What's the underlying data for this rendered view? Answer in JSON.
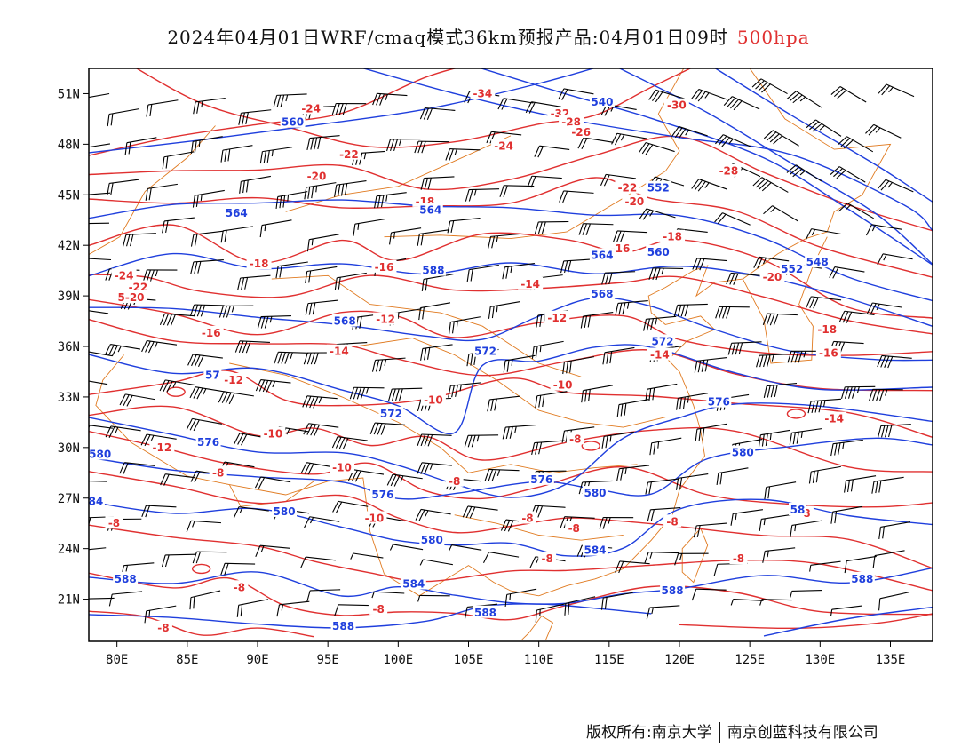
{
  "title": {
    "main": "2024年04月01日WRF/cmaq模式36km预报产品:04月01日09时",
    "level": "500hpa",
    "level_color": "#e03030"
  },
  "axes": {
    "lon_labels": [
      "80E",
      "85E",
      "90E",
      "95E",
      "100E",
      "105E",
      "110E",
      "115E",
      "120E",
      "125E",
      "130E",
      "135E"
    ],
    "lon_values": [
      80,
      85,
      90,
      95,
      100,
      105,
      110,
      115,
      120,
      125,
      130,
      135
    ],
    "lat_labels": [
      "51N",
      "48N",
      "45N",
      "42N",
      "39N",
      "36N",
      "33N",
      "30N",
      "27N",
      "24N",
      "21N"
    ],
    "lat_values": [
      51,
      48,
      45,
      42,
      39,
      36,
      33,
      30,
      27,
      24,
      21
    ],
    "lon_range": [
      78,
      138
    ],
    "lat_range": [
      18.5,
      52.5
    ]
  },
  "colors": {
    "height_contours": "#1f3fdd",
    "temperature_contours": "#e03030",
    "coastline_borders": "#e07a20",
    "wind_barbs": "#000000"
  },
  "height_labels": [
    {
      "text": "560",
      "lon": 92.5,
      "lat": 49.3
    },
    {
      "text": "540",
      "lon": 114.5,
      "lat": 50.5
    },
    {
      "text": "552",
      "lon": 118.5,
      "lat": 45.4
    },
    {
      "text": "564",
      "lon": 88.5,
      "lat": 43.9
    },
    {
      "text": "564",
      "lon": 102.3,
      "lat": 44.1
    },
    {
      "text": "588",
      "lon": 102.5,
      "lat": 40.5
    },
    {
      "text": "564",
      "lon": 114.5,
      "lat": 41.4
    },
    {
      "text": "560",
      "lon": 118.5,
      "lat": 41.6
    },
    {
      "text": "552",
      "lon": 128.0,
      "lat": 40.6
    },
    {
      "text": "548",
      "lon": 129.8,
      "lat": 41.0
    },
    {
      "text": "568",
      "lon": 114.5,
      "lat": 39.1
    },
    {
      "text": "568",
      "lon": 96.2,
      "lat": 37.5
    },
    {
      "text": "572",
      "lon": 106.2,
      "lat": 35.7
    },
    {
      "text": "572",
      "lon": 118.8,
      "lat": 36.3
    },
    {
      "text": "57",
      "lon": 86.8,
      "lat": 34.3
    },
    {
      "text": "572",
      "lon": 99.5,
      "lat": 32.0
    },
    {
      "text": "576",
      "lon": 122.8,
      "lat": 32.7
    },
    {
      "text": "576",
      "lon": 86.5,
      "lat": 30.3
    },
    {
      "text": "580",
      "lon": 78.8,
      "lat": 29.6
    },
    {
      "text": "576",
      "lon": 110.2,
      "lat": 28.1
    },
    {
      "text": "576",
      "lon": 98.9,
      "lat": 27.2
    },
    {
      "text": "580",
      "lon": 124.5,
      "lat": 29.7
    },
    {
      "text": "580",
      "lon": 91.9,
      "lat": 26.2
    },
    {
      "text": "580",
      "lon": 114.0,
      "lat": 27.3
    },
    {
      "text": "84",
      "lon": 78.5,
      "lat": 26.8
    },
    {
      "text": "580",
      "lon": 102.4,
      "lat": 24.5
    },
    {
      "text": "58",
      "lon": 128.4,
      "lat": 26.3
    },
    {
      "text": "584",
      "lon": 114.0,
      "lat": 23.9
    },
    {
      "text": "588",
      "lon": 80.6,
      "lat": 22.2
    },
    {
      "text": "584",
      "lon": 101.1,
      "lat": 21.9
    },
    {
      "text": "588",
      "lon": 119.5,
      "lat": 21.5
    },
    {
      "text": "588",
      "lon": 133.0,
      "lat": 22.2
    },
    {
      "text": "588",
      "lon": 106.2,
      "lat": 20.2
    },
    {
      "text": "588",
      "lon": 96.1,
      "lat": 19.4
    }
  ],
  "temp_labels": [
    {
      "text": "-34",
      "lon": 106.0,
      "lat": 51.0
    },
    {
      "text": "-32",
      "lon": 111.5,
      "lat": 49.8
    },
    {
      "text": "-28",
      "lon": 112.3,
      "lat": 49.3
    },
    {
      "text": "-26",
      "lon": 113.0,
      "lat": 48.7
    },
    {
      "text": "-30",
      "lon": 119.8,
      "lat": 50.3
    },
    {
      "text": "-24",
      "lon": 93.8,
      "lat": 50.1
    },
    {
      "text": "-24",
      "lon": 107.5,
      "lat": 47.9
    },
    {
      "text": "-22",
      "lon": 96.5,
      "lat": 47.4
    },
    {
      "text": "-28",
      "lon": 123.5,
      "lat": 46.4
    },
    {
      "text": "-20",
      "lon": 94.2,
      "lat": 46.1
    },
    {
      "text": "-22",
      "lon": 116.3,
      "lat": 45.4
    },
    {
      "text": "-20",
      "lon": 116.8,
      "lat": 44.6
    },
    {
      "text": "-18",
      "lon": 101.9,
      "lat": 44.6
    },
    {
      "text": "-18",
      "lon": 119.5,
      "lat": 42.5
    },
    {
      "text": "-16",
      "lon": 115.8,
      "lat": 41.8
    },
    {
      "text": "-18",
      "lon": 90.1,
      "lat": 40.9
    },
    {
      "text": "-16",
      "lon": 99.0,
      "lat": 40.7
    },
    {
      "text": "-20",
      "lon": 126.6,
      "lat": 40.1
    },
    {
      "text": "-24",
      "lon": 80.5,
      "lat": 40.2
    },
    {
      "text": "-22",
      "lon": 81.5,
      "lat": 39.5
    },
    {
      "text": "5-20",
      "lon": 81.0,
      "lat": 38.9
    },
    {
      "text": "-14",
      "lon": 109.4,
      "lat": 39.7
    },
    {
      "text": "-12",
      "lon": 99.1,
      "lat": 37.6
    },
    {
      "text": "-12",
      "lon": 111.3,
      "lat": 37.7
    },
    {
      "text": "-16",
      "lon": 86.7,
      "lat": 36.8
    },
    {
      "text": "-18",
      "lon": 130.5,
      "lat": 37.0
    },
    {
      "text": "-14",
      "lon": 95.8,
      "lat": 35.7
    },
    {
      "text": "-16",
      "lon": 130.6,
      "lat": 35.6
    },
    {
      "text": "-14",
      "lon": 118.6,
      "lat": 35.5
    },
    {
      "text": "-12",
      "lon": 88.3,
      "lat": 34.0
    },
    {
      "text": "-10",
      "lon": 111.7,
      "lat": 33.7
    },
    {
      "text": "-10",
      "lon": 102.5,
      "lat": 32.8
    },
    {
      "text": "-14",
      "lon": 131.0,
      "lat": 31.7
    },
    {
      "text": "-10",
      "lon": 91.1,
      "lat": 30.8
    },
    {
      "text": "-8",
      "lon": 112.6,
      "lat": 30.5
    },
    {
      "text": "-12",
      "lon": 83.2,
      "lat": 30.0
    },
    {
      "text": "-10",
      "lon": 96.0,
      "lat": 28.8
    },
    {
      "text": "-8",
      "lon": 87.2,
      "lat": 28.5
    },
    {
      "text": "-8",
      "lon": 104.0,
      "lat": 28.0
    },
    {
      "text": "-8",
      "lon": 128.9,
      "lat": 26.1
    },
    {
      "text": "-10",
      "lon": 98.3,
      "lat": 25.8
    },
    {
      "text": "-8",
      "lon": 79.8,
      "lat": 25.5
    },
    {
      "text": "-8",
      "lon": 109.2,
      "lat": 25.8
    },
    {
      "text": "-8",
      "lon": 119.5,
      "lat": 25.6
    },
    {
      "text": "-8",
      "lon": 112.5,
      "lat": 25.2
    },
    {
      "text": "-8",
      "lon": 110.6,
      "lat": 23.4
    },
    {
      "text": "-8",
      "lon": 124.2,
      "lat": 23.4
    },
    {
      "text": "-8",
      "lon": 88.7,
      "lat": 21.7
    },
    {
      "text": "-8",
      "lon": 98.6,
      "lat": 20.4
    },
    {
      "text": "-8",
      "lon": 83.3,
      "lat": 19.3
    }
  ],
  "footer": {
    "copyright": "版权所有:南京大学",
    "company": "南京创蓝科技有限公司"
  }
}
